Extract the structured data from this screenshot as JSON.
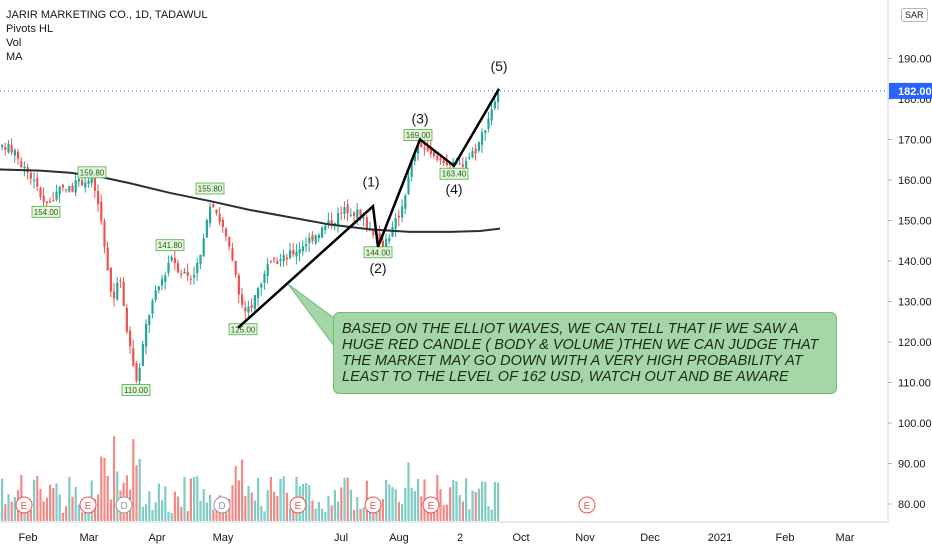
{
  "legend": {
    "symbol": "JARIR MARKETING CO., 1D, TADAWUL",
    "indicators": [
      "Pivots HL",
      "Vol",
      "MA"
    ]
  },
  "currency_badge": "SAR",
  "note_text": "BASED ON THE ELLIOT WAVES, WE CAN TELL THAT IF WE SAW A HUGE RED CANDLE ( BODY & VOLUME )THEN WE CAN JUDGE THAT THE MARKET MAY GO DOWN WITH A VERY HIGH PROBABILITY AT LEAST TO THE LEVEL OF 162 USD, WATCH OUT AND BE AWARE",
  "colors": {
    "up": "#26a69a",
    "down": "#ef5350",
    "vol_up": "#80cbc4",
    "vol_down": "#f28b87",
    "ma": "#2a2e39",
    "wave_line": "#000000",
    "pivot_box": "#e6f4d7",
    "pivot_border": "#4caf50",
    "current_price": "#2962ff",
    "earnings": "#ef5350",
    "dividend": "#9598a1"
  },
  "chart_data": {
    "type": "candlestick",
    "ylim": [
      75,
      200
    ],
    "price_ticks": [
      80,
      90,
      100,
      110,
      120,
      130,
      140,
      150,
      160,
      170,
      180,
      190
    ],
    "current_price": 182.0,
    "current_price_label": "182.00",
    "x_labels": [
      "Feb",
      "Mar",
      "Apr",
      "May",
      "Jul",
      "Aug",
      "2",
      "Oct",
      "Nov",
      "Dec",
      "2021",
      "Feb",
      "Mar"
    ],
    "price_path": [
      [
        0,
        167.6
      ],
      [
        10,
        168
      ],
      [
        20,
        164
      ],
      [
        30,
        161
      ],
      [
        40,
        156
      ],
      [
        48,
        154
      ],
      [
        56,
        157
      ],
      [
        70,
        158
      ],
      [
        82,
        160
      ],
      [
        92,
        159.8
      ],
      [
        100,
        150
      ],
      [
        104,
        142
      ],
      [
        108,
        134
      ],
      [
        112,
        130
      ],
      [
        118,
        138
      ],
      [
        124,
        125
      ],
      [
        130,
        118
      ],
      [
        135,
        110
      ],
      [
        140,
        116
      ],
      [
        145,
        124
      ],
      [
        150,
        129
      ],
      [
        155,
        132
      ],
      [
        160,
        135
      ],
      [
        165,
        138
      ],
      [
        170,
        141.8
      ],
      [
        178,
        138
      ],
      [
        190,
        136
      ],
      [
        198,
        140
      ],
      [
        204,
        146
      ],
      [
        210,
        155.8
      ],
      [
        216,
        152
      ],
      [
        222,
        148
      ],
      [
        228,
        143
      ],
      [
        234,
        137
      ],
      [
        238,
        131
      ],
      [
        243,
        126
      ],
      [
        250,
        129
      ],
      [
        258,
        134
      ],
      [
        266,
        138
      ],
      [
        276,
        140
      ],
      [
        286,
        141
      ],
      [
        296,
        143
      ],
      [
        306,
        145
      ],
      [
        316,
        147
      ],
      [
        326,
        149
      ],
      [
        336,
        151
      ],
      [
        346,
        153
      ],
      [
        356,
        152
      ],
      [
        366,
        149
      ],
      [
        374,
        147
      ],
      [
        378,
        144
      ],
      [
        384,
        145
      ],
      [
        392,
        148
      ],
      [
        400,
        153
      ],
      [
        408,
        161
      ],
      [
        414,
        167
      ],
      [
        420,
        169
      ],
      [
        428,
        166
      ],
      [
        436,
        165
      ],
      [
        444,
        165
      ],
      [
        452,
        163.4
      ],
      [
        460,
        164
      ],
      [
        468,
        166
      ],
      [
        476,
        168
      ],
      [
        482,
        172
      ],
      [
        488,
        176
      ],
      [
        494,
        180
      ],
      [
        500,
        182
      ]
    ],
    "moving_average": [
      [
        0,
        162.6
      ],
      [
        40,
        162.3
      ],
      [
        70,
        161.8
      ],
      [
        100,
        160.8
      ],
      [
        130,
        159.2
      ],
      [
        170,
        156.8
      ],
      [
        210,
        154.8
      ],
      [
        250,
        152.6
      ],
      [
        290,
        150.8
      ],
      [
        330,
        149.0
      ],
      [
        370,
        147.8
      ],
      [
        410,
        147.2
      ],
      [
        450,
        147.2
      ],
      [
        480,
        147.4
      ],
      [
        500,
        148.0
      ]
    ],
    "pivots": [
      {
        "label": "159.80",
        "price": 159.8,
        "type": "high",
        "x": 92
      },
      {
        "label": "154.00",
        "price": 154.0,
        "type": "low",
        "x": 46
      },
      {
        "label": "155.80",
        "price": 155.8,
        "type": "high",
        "x": 210
      },
      {
        "label": "141.80",
        "price": 141.8,
        "type": "high",
        "x": 170
      },
      {
        "label": "110.00",
        "price": 110.0,
        "type": "low",
        "x": 136
      },
      {
        "label": "125.00",
        "price": 125.0,
        "type": "low",
        "x": 243
      },
      {
        "label": "144.00",
        "price": 144.0,
        "type": "low",
        "x": 378
      },
      {
        "label": "169.00",
        "price": 169.0,
        "type": "high",
        "x": 418
      },
      {
        "label": "163.40",
        "price": 163.4,
        "type": "low",
        "x": 454
      }
    ],
    "elliott_wave": [
      {
        "label": "",
        "x": 238,
        "price": 123.5
      },
      {
        "label": "(1)",
        "x": 373,
        "price": 153.5
      },
      {
        "label": "(2)",
        "x": 378,
        "price": 143.5
      },
      {
        "label": "(3)",
        "x": 420,
        "price": 170.0
      },
      {
        "label": "(4)",
        "x": 454,
        "price": 163.5
      },
      {
        "label": "(5)",
        "x": 499,
        "price": 182.5
      }
    ],
    "event_markers": [
      {
        "type": "E",
        "x": 24
      },
      {
        "type": "E",
        "x": 88
      },
      {
        "type": "D",
        "x": 124
      },
      {
        "type": "D",
        "x": 222
      },
      {
        "type": "E",
        "x": 298
      },
      {
        "type": "E",
        "x": 373
      },
      {
        "type": "E",
        "x": 431
      },
      {
        "type": "E",
        "x": 587
      }
    ]
  }
}
